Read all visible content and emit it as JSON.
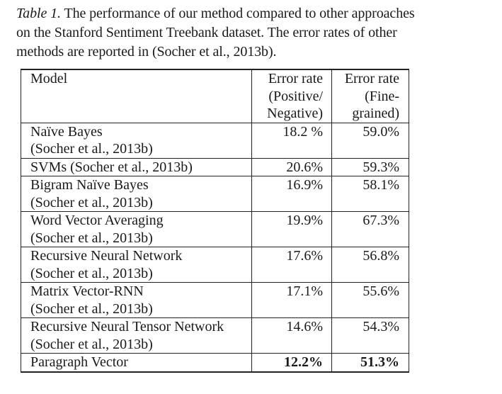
{
  "caption": {
    "label": "Table 1.",
    "text": " The performance of our method compared to other approaches on the Stanford Sentiment Treebank dataset. The error rates of other methods are reported in (Socher et al., 2013b)."
  },
  "table": {
    "header": {
      "model": "Model",
      "pos_lines": [
        "Error rate",
        "(Positive/",
        "Negative)"
      ],
      "fine_lines": [
        "Error rate",
        "(Fine-",
        "grained)"
      ]
    },
    "rows": [
      {
        "model_lines": [
          "Naïve Bayes",
          "(Socher et al., 2013b)"
        ],
        "pos": "18.2 %",
        "fine": "59.0%"
      },
      {
        "model_lines": [
          "SVMs (Socher et al., 2013b)"
        ],
        "pos": "20.6%",
        "fine": "59.3%"
      },
      {
        "model_lines": [
          "Bigram Naïve Bayes",
          "(Socher et al., 2013b)"
        ],
        "pos": "16.9%",
        "fine": "58.1%"
      },
      {
        "model_lines": [
          "Word Vector Averaging",
          "(Socher et al., 2013b)"
        ],
        "pos": "19.9%",
        "fine": "67.3%"
      },
      {
        "model_lines": [
          "Recursive Neural Network",
          "(Socher et al., 2013b)"
        ],
        "pos": "17.6%",
        "fine": "56.8%"
      },
      {
        "model_lines": [
          "Matrix Vector-RNN",
          "(Socher et al., 2013b)"
        ],
        "pos": "17.1%",
        "fine": "55.6%"
      },
      {
        "model_lines": [
          "Recursive Neural Tensor Network",
          "(Socher et al., 2013b)"
        ],
        "pos": "14.6%",
        "fine": "54.3%"
      },
      {
        "model_lines": [
          "Paragraph Vector"
        ],
        "pos": "12.2%",
        "fine": "51.3%",
        "bold": true
      }
    ]
  }
}
